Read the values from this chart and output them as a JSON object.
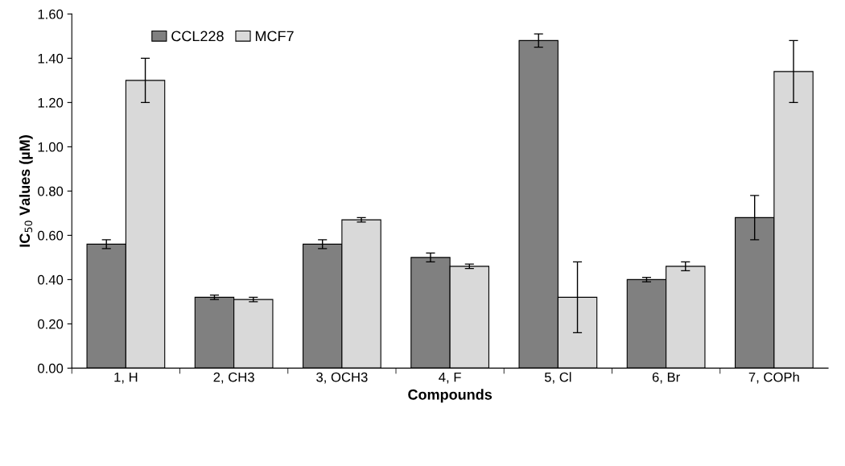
{
  "chart_data": {
    "type": "bar",
    "xlabel": "Compounds",
    "ylabel": "IC$_{50}$ Values (µM)",
    "categories": [
      "1, H",
      "2, CH3",
      "3, OCH3",
      "4, F",
      "5, Cl",
      "6, Br",
      "7, COPh"
    ],
    "series": [
      {
        "name": "CCL228",
        "color": "#808080",
        "values": [
          0.56,
          0.32,
          0.56,
          0.5,
          1.48,
          0.4,
          0.68
        ],
        "errors": [
          0.02,
          0.01,
          0.02,
          0.02,
          0.03,
          0.01,
          0.1
        ]
      },
      {
        "name": "MCF7",
        "color": "#d9d9d9",
        "values": [
          1.3,
          0.31,
          0.67,
          0.46,
          0.32,
          0.46,
          1.34
        ],
        "errors": [
          0.1,
          0.01,
          0.01,
          0.01,
          0.16,
          0.02,
          0.14
        ]
      }
    ],
    "ylim": [
      0,
      1.6
    ],
    "yticks": [
      {
        "value": 0,
        "label": "0.00"
      },
      {
        "value": 0.2,
        "label": "0.20"
      },
      {
        "value": 0.4,
        "label": "0.40"
      },
      {
        "value": 0.6,
        "label": "0.60"
      },
      {
        "value": 0.8,
        "label": "0.80"
      },
      {
        "value": 1.0,
        "label": "1.00"
      },
      {
        "value": 1.2,
        "label": "1.20"
      },
      {
        "value": 1.4,
        "label": "1.40"
      },
      {
        "value": 1.6,
        "label": "1.60"
      }
    ],
    "grid": false,
    "legend": "top left"
  }
}
